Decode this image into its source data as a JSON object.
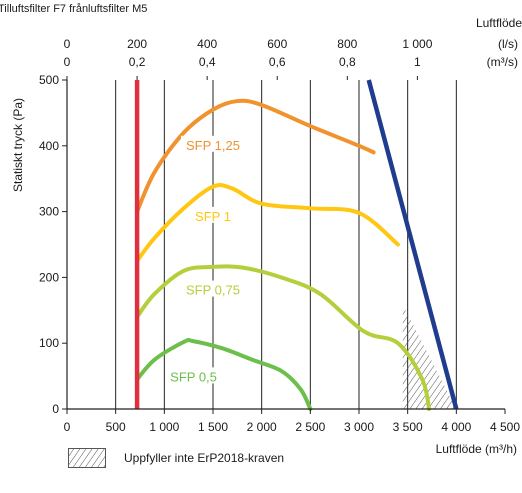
{
  "chart_data": {
    "type": "line",
    "title": "Tilluftsfilter F7 frånluftsfilter M5",
    "top_axis": {
      "label": "Luftflöde",
      "ls_unit": "(l/s)",
      "m3s_unit": "(m³/s)",
      "ls_ticks": [
        "0",
        "200",
        "400",
        "600",
        "800",
        "1 000"
      ],
      "ls_values": [
        0,
        200,
        400,
        600,
        800,
        1000
      ],
      "m3s_ticks": [
        "0",
        "0,2",
        "0,4",
        "0,6",
        "0,8",
        "1"
      ]
    },
    "xlabel": "Luftflöde (m³/h)",
    "ylabel": "Statiskt tryck (Pa)",
    "xlim": [
      0,
      4500
    ],
    "ylim": [
      0,
      500
    ],
    "x_ticks": [
      "0",
      "500",
      "1 000",
      "1 500",
      "2 000",
      "2 500",
      "3 000",
      "3 500",
      "4 000",
      "4 500"
    ],
    "x_tick_values": [
      0,
      500,
      1000,
      1500,
      2000,
      2500,
      3000,
      3500,
      4000,
      4500
    ],
    "y_ticks": [
      "0",
      "100",
      "200",
      "300",
      "400",
      "500"
    ],
    "y_tick_values": [
      0,
      100,
      200,
      300,
      400,
      500
    ],
    "grid": "vertical",
    "series": [
      {
        "name": "SFP 1,25",
        "color": "#f0932e",
        "points": [
          [
            720,
            300
          ],
          [
            900,
            360
          ],
          [
            1200,
            420
          ],
          [
            1500,
            455
          ],
          [
            1750,
            468
          ],
          [
            2000,
            462
          ],
          [
            2500,
            430
          ],
          [
            3000,
            400
          ],
          [
            3150,
            390
          ]
        ]
      },
      {
        "name": "SFP 1",
        "color": "#ffc712",
        "points": [
          [
            720,
            225
          ],
          [
            900,
            260
          ],
          [
            1200,
            305
          ],
          [
            1500,
            338
          ],
          [
            1700,
            335
          ],
          [
            2000,
            312
          ],
          [
            2500,
            305
          ],
          [
            3000,
            298
          ],
          [
            3400,
            250
          ]
        ]
      },
      {
        "name": "SFP 0,75",
        "color": "#b3cf3b",
        "points": [
          [
            720,
            140
          ],
          [
            900,
            175
          ],
          [
            1200,
            210
          ],
          [
            1500,
            216
          ],
          [
            1800,
            215
          ],
          [
            2200,
            200
          ],
          [
            2600,
            175
          ],
          [
            3050,
            118
          ],
          [
            3400,
            100
          ],
          [
            3650,
            45
          ],
          [
            3720,
            0
          ]
        ]
      },
      {
        "name": "SFP 0,5",
        "color": "#6cbf4b",
        "points": [
          [
            720,
            45
          ],
          [
            900,
            75
          ],
          [
            1200,
            102
          ],
          [
            1300,
            103
          ],
          [
            1600,
            92
          ],
          [
            1900,
            75
          ],
          [
            2200,
            58
          ],
          [
            2400,
            30
          ],
          [
            2500,
            0
          ]
        ]
      }
    ],
    "limits": [
      {
        "name": "min_flow",
        "color": "#e0303d",
        "points": [
          [
            720,
            0
          ],
          [
            720,
            500
          ]
        ]
      },
      {
        "name": "max_line",
        "color": "#1f3c8f",
        "points": [
          [
            4000,
            0
          ],
          [
            3100,
            500
          ]
        ]
      }
    ],
    "hatched_region": {
      "color": "#555555",
      "points": [
        [
          3480,
          150
        ],
        [
          3450,
          150
        ],
        [
          3450,
          0
        ],
        [
          4000,
          0
        ]
      ]
    },
    "legend": {
      "text": "Uppfyller inte ErP2018-kraven",
      "position": "bottom-left"
    }
  }
}
